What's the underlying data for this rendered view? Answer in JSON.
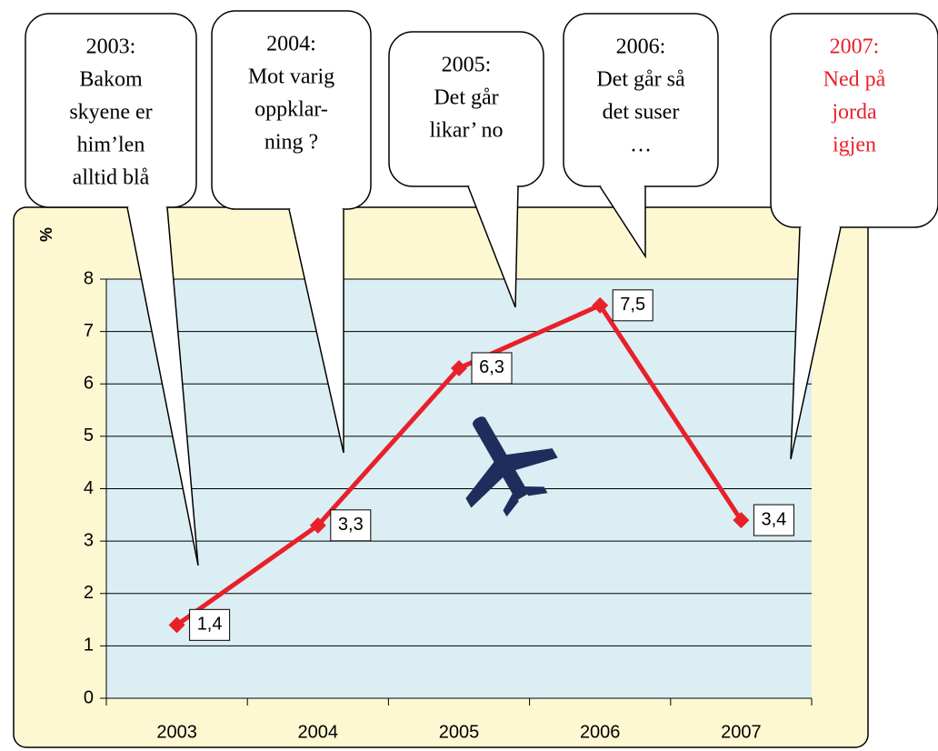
{
  "chart_data": {
    "type": "line",
    "y_label": "%",
    "categories": [
      "2003",
      "2004",
      "2005",
      "2006",
      "2007"
    ],
    "series": [
      {
        "color": "#e8202a",
        "values": [
          1.4,
          3.3,
          6.3,
          7.5,
          3.4
        ],
        "value_labels": [
          "1,4",
          "3,3",
          "6,3",
          "7,5",
          "3,4"
        ]
      }
    ],
    "ylim": [
      0,
      8
    ],
    "yticks": [
      0,
      1,
      2,
      3,
      4,
      5,
      6,
      7,
      8
    ],
    "grid": true,
    "annotations": [
      {
        "lines": [
          "2003:",
          "Bakom",
          "skyene er",
          "him’len",
          "alltid blå"
        ],
        "color": "#000000"
      },
      {
        "lines": [
          "2004:",
          "Mot varig",
          "oppklar-",
          "ning  ?"
        ],
        "color": "#000000"
      },
      {
        "lines": [
          "2005:",
          "Det går",
          "likar’ no"
        ],
        "color": "#000000"
      },
      {
        "lines": [
          "2006:",
          "Det går så",
          "det suser",
          "…"
        ],
        "color": "#000000"
      },
      {
        "lines": [
          "2007:",
          "Ned på",
          "jorda",
          "igjen"
        ],
        "color": "#e8202a"
      }
    ]
  }
}
